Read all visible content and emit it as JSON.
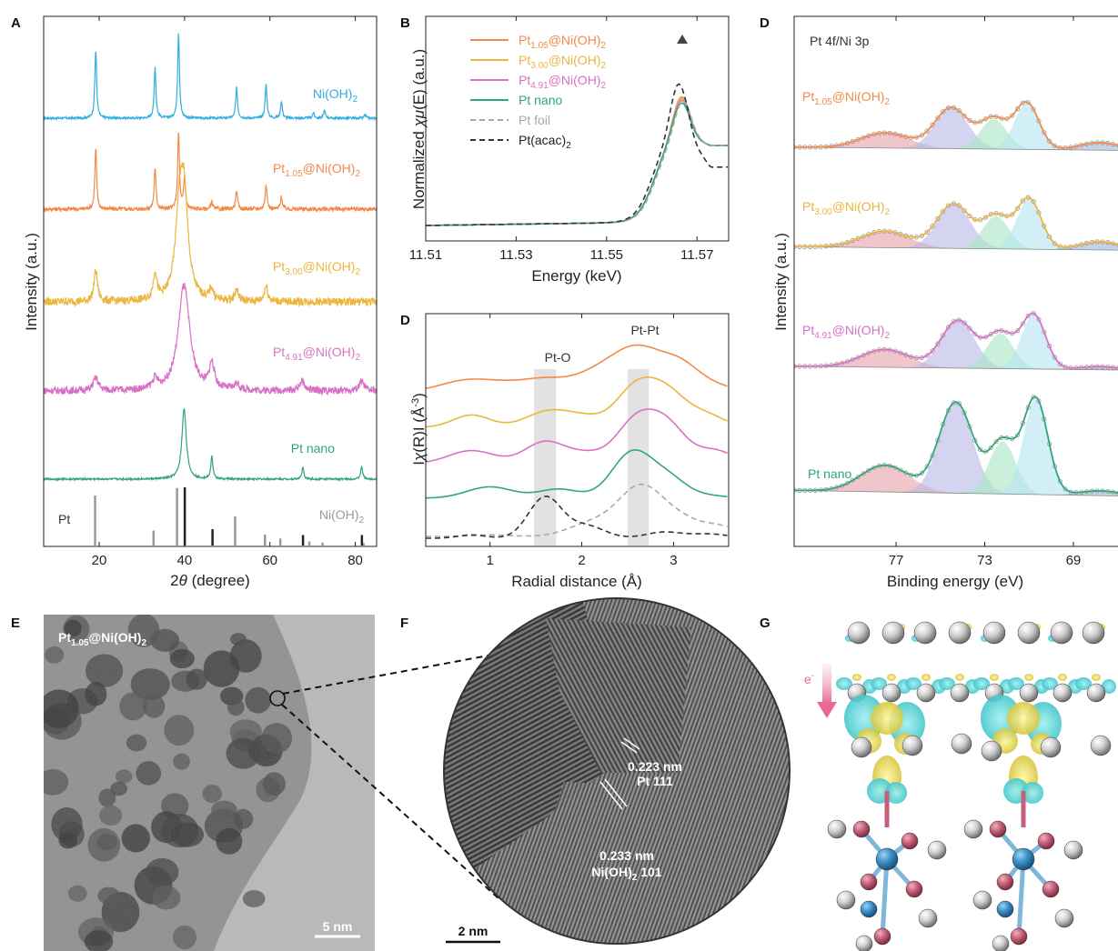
{
  "colors": {
    "NiOH2": "#33aedf",
    "Pt105": "#f28a4a",
    "Pt300": "#ebb53e",
    "Pt491": "#d970c5",
    "Ptnano": "#2fa67c",
    "foil": "#a8a8a8",
    "acac": "#333333",
    "fit_red": "#e8a0a8",
    "fit_lav": "#b8b8e6",
    "fit_green": "#a6e6c4",
    "fit_cyan": "#b4e4f2",
    "fit_navy": "#9cb8d6"
  },
  "panels": {
    "A": "A",
    "B": "B",
    "C": "D",
    "D": "D",
    "E": "E",
    "F": "F",
    "G": "G"
  },
  "chart_data": [
    {
      "panel": "A",
      "type": "line",
      "xlabel": "2θ (degree)",
      "ylabel": "Intensity (a.u.)",
      "xlim": [
        7,
        85
      ],
      "xticks": [
        20,
        40,
        60,
        80
      ],
      "series": [
        {
          "name": "Ni(OH)2",
          "color": "#33aedf",
          "peaks": [
            [
              19.2,
              1.0
            ],
            [
              33.1,
              0.75
            ],
            [
              38.6,
              1.25
            ],
            [
              52.2,
              0.45
            ],
            [
              59.1,
              0.5
            ],
            [
              62.7,
              0.25
            ],
            [
              70.2,
              0.08
            ],
            [
              72.8,
              0.12
            ],
            [
              82.3,
              0.05
            ]
          ]
        },
        {
          "name": "Pt1.05@Ni(OH)2",
          "color": "#f28a4a",
          "peaks": [
            [
              19.2,
              0.95
            ],
            [
              33.1,
              0.65
            ],
            [
              38.6,
              1.2
            ],
            [
              40.0,
              0.5
            ],
            [
              46.4,
              0.12
            ],
            [
              52.2,
              0.3
            ],
            [
              59.1,
              0.4
            ],
            [
              62.7,
              0.2
            ]
          ]
        },
        {
          "name": "Pt3.00@Ni(OH)2",
          "color": "#ebb53e",
          "peaks": [
            [
              19.2,
              0.4
            ],
            [
              33.1,
              0.35
            ],
            [
              38.8,
              1.0
            ],
            [
              39.9,
              1.2
            ],
            [
              46.3,
              0.15
            ],
            [
              52.2,
              0.15
            ],
            [
              59.1,
              0.2
            ]
          ]
        },
        {
          "name": "Pt4.91@Ni(OH)2",
          "color": "#d970c5",
          "peaks": [
            [
              19.2,
              0.2
            ],
            [
              33.1,
              0.15
            ],
            [
              39.6,
              0.8
            ],
            [
              40.1,
              0.9
            ],
            [
              46.4,
              0.4
            ],
            [
              52.2,
              0.1
            ],
            [
              67.5,
              0.15
            ],
            [
              81.5,
              0.15
            ]
          ]
        },
        {
          "name": "Pt nano",
          "color": "#2fa67c",
          "peaks": [
            [
              39.9,
              1.55
            ],
            [
              46.4,
              0.5
            ],
            [
              67.7,
              0.25
            ],
            [
              81.5,
              0.28
            ]
          ]
        }
      ],
      "reference": {
        "labels": [
          "Pt",
          "Ni(OH)2"
        ],
        "Pt_lines": [
          [
            39.8,
            1.0
          ],
          [
            46.3,
            0.28
          ],
          [
            67.5,
            0.18
          ],
          [
            81.3,
            0.18
          ]
        ],
        "NiOH2_lines": [
          [
            19.3,
            1.0
          ],
          [
            33.0,
            0.3
          ],
          [
            38.5,
            1.15
          ],
          [
            52.1,
            0.58
          ],
          [
            59.1,
            0.22
          ],
          [
            62.7,
            0.14
          ],
          [
            69.5,
            0.08
          ],
          [
            72.6,
            0.06
          ],
          [
            82.2,
            0.05
          ]
        ]
      },
      "annotations": [
        "Ni(OH)2",
        "Pt1.05@Ni(OH)2",
        "Pt3.00@Ni(OH)2",
        "Pt4.91@Ni(OH)2",
        "Pt nano",
        "Pt",
        "Ni(OH)2"
      ]
    },
    {
      "panel": "B",
      "type": "line",
      "xlabel": "Energy (keV)",
      "ylabel": "Normalized χμ(E) (a.u.)",
      "xlim": [
        11.51,
        11.577
      ],
      "xticks": [
        11.51,
        11.53,
        11.55,
        11.57
      ],
      "series": [
        {
          "name": "Pt1.05@Ni(OH)2",
          "color": "#f28a4a",
          "style": "solid",
          "peak": 1.5
        },
        {
          "name": "Pt3.00@Ni(OH)2",
          "color": "#ebb53e",
          "style": "solid",
          "peak": 1.48
        },
        {
          "name": "Pt4.91@Ni(OH)2",
          "color": "#d970c5",
          "style": "solid",
          "peak": 1.46
        },
        {
          "name": "Pt nano",
          "color": "#2fa67c",
          "style": "solid",
          "peak": 1.43
        },
        {
          "name": "Pt foil",
          "color": "#a8a8a8",
          "style": "dashed",
          "peak": 1.45
        },
        {
          "name": "Pt(acac)2",
          "color": "#333333",
          "style": "dashed",
          "peak": 1.65
        }
      ]
    },
    {
      "panel": "D",
      "type": "line",
      "xlabel": "Radial distance (Å)",
      "ylabel": "I χ(R)I (Å-3)",
      "xlim": [
        0.3,
        3.6
      ],
      "xticks": [
        1,
        2,
        3
      ],
      "shaded_bands": [
        [
          1.48,
          1.72
        ],
        [
          2.5,
          2.73
        ]
      ],
      "band_labels": [
        "Pt-O",
        "Pt-Pt"
      ],
      "series": [
        {
          "name": "Pt1.05@Ni(OH)2",
          "color": "#f28a4a",
          "style": "solid"
        },
        {
          "name": "Pt3.00@Ni(OH)2",
          "color": "#ebb53e",
          "style": "solid"
        },
        {
          "name": "Pt4.91@Ni(OH)2",
          "color": "#d970c5",
          "style": "solid"
        },
        {
          "name": "Pt nano",
          "color": "#2fa67c",
          "style": "solid"
        },
        {
          "name": "Pt foil",
          "color": "#a8a8a8",
          "style": "dashed"
        },
        {
          "name": "Pt(acac)2",
          "color": "#333333",
          "style": "dashed"
        }
      ]
    },
    {
      "panel": "D",
      "type": "line",
      "title": "Pt 4f/Ni 3p",
      "xlabel": "Binding energy (eV)",
      "ylabel": "Intensity (a.u.)",
      "xlim": [
        81.6,
        66.0
      ],
      "xticks": [
        77,
        73,
        69
      ],
      "series": [
        {
          "name": "Pt1.05@Ni(OH)2",
          "color": "#f28a4a",
          "peaks_eV": [
            74.5,
            71.2
          ]
        },
        {
          "name": "Pt3.00@Ni(OH)2",
          "color": "#ebb53e",
          "peaks_eV": [
            74.4,
            71.1
          ]
        },
        {
          "name": "Pt4.91@Ni(OH)2",
          "color": "#d970c5",
          "peaks_eV": [
            74.2,
            70.9
          ]
        },
        {
          "name": "Pt nano",
          "color": "#2fa67c",
          "peaks_eV": [
            74.3,
            70.8
          ]
        }
      ]
    }
  ],
  "labels": {
    "A": {
      "ni": {
        "pre": "Ni(OH)",
        "sub": "2",
        "post": ""
      },
      "pt105": {
        "pre": "Pt",
        "sub": "1.05",
        "post": "@Ni(OH)",
        "sub2": "2"
      },
      "pt300": {
        "pre": "Pt",
        "sub": "3.00",
        "post": "@Ni(OH)",
        "sub2": "2"
      },
      "pt491": {
        "pre": "Pt",
        "sub": "4.91",
        "post": "@Ni(OH)",
        "sub2": "2"
      },
      "ptnano": "Pt nano",
      "ref_pt": "Pt",
      "ref_ni": {
        "pre": "Ni(OH)",
        "sub": "2"
      }
    },
    "B": {
      "leg": [
        {
          "pre": "Pt",
          "sub": "1.05",
          "post": "@Ni(OH)",
          "sub2": "2"
        },
        {
          "pre": "Pt",
          "sub": "3.00",
          "post": "@Ni(OH)",
          "sub2": "2"
        },
        {
          "pre": "Pt",
          "sub": "4.91",
          "post": "@Ni(OH)",
          "sub2": "2"
        },
        {
          "pre": "Pt nano"
        },
        {
          "pre": "Pt foil"
        },
        {
          "pre": "Pt(acac)",
          "sub": "2"
        }
      ]
    },
    "C": {
      "pto": "Pt-O",
      "ptpt": "Pt-Pt"
    },
    "D": {
      "title": "Pt 4f/Ni 3p",
      "pt105": {
        "pre": "Pt",
        "sub": "1.05",
        "post": "@Ni(OH)",
        "sub2": "2"
      },
      "pt300": {
        "pre": "Pt",
        "sub": "3.00",
        "post": "@Ni(OH)",
        "sub2": "2"
      },
      "pt491": {
        "pre": "Pt",
        "sub": "4.91",
        "post": "@Ni(OH)",
        "sub2": "2"
      },
      "ptnano": "Pt nano"
    },
    "E": {
      "sample": {
        "pre": "Pt",
        "sub": "1.05",
        "post": "@Ni(OH)",
        "sub2": "2"
      },
      "scale": "5 nm"
    },
    "F": {
      "d1": "0.223 nm",
      "d1b": "Pt 111",
      "d2": "0.233 nm",
      "d2b_pre": "Ni(OH)",
      "d2b_sub": "2",
      "d2b_post": " 101",
      "scale": "2 nm"
    },
    "G": {
      "e": "e",
      "esup": "-"
    }
  }
}
